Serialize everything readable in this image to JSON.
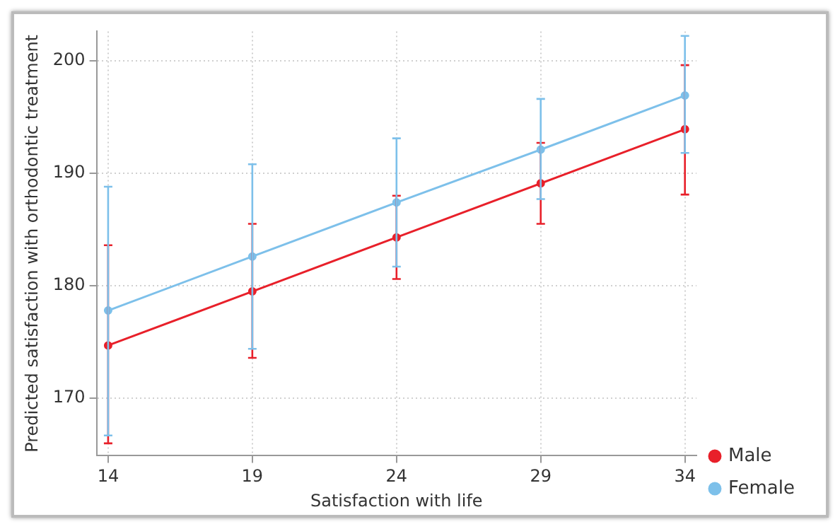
{
  "chart_data": {
    "type": "line",
    "xlabel": "Satisfaction with life",
    "ylabel": "Predicted satisfaction with orthodontic treatment",
    "x": [
      14,
      19,
      24,
      29,
      34
    ],
    "series": [
      {
        "name": "Male",
        "color": "#e8202a",
        "values": [
          174.7,
          179.5,
          184.3,
          189.1,
          193.9
        ],
        "errors": [
          [
            166.0,
            183.6
          ],
          [
            173.6,
            185.5
          ],
          [
            180.6,
            188.0
          ],
          [
            185.5,
            192.7
          ],
          [
            188.1,
            199.6
          ]
        ]
      },
      {
        "name": "Female",
        "color": "#7dc0ea",
        "values": [
          177.8,
          182.6,
          187.4,
          192.1,
          196.9
        ],
        "errors": [
          [
            166.7,
            188.8
          ],
          [
            174.4,
            190.8
          ],
          [
            181.7,
            193.1
          ],
          [
            187.7,
            196.6
          ],
          [
            191.8,
            202.2
          ]
        ]
      }
    ],
    "xlim": [
      13.6,
      34.4
    ],
    "xticks": [
      14,
      19,
      24,
      29,
      34
    ],
    "ylim": [
      164.9,
      202.6
    ],
    "yticks": [
      170,
      180,
      190,
      200
    ],
    "grid": true,
    "legend": "bottom right",
    "marker": "circle",
    "line_style": "solid"
  }
}
